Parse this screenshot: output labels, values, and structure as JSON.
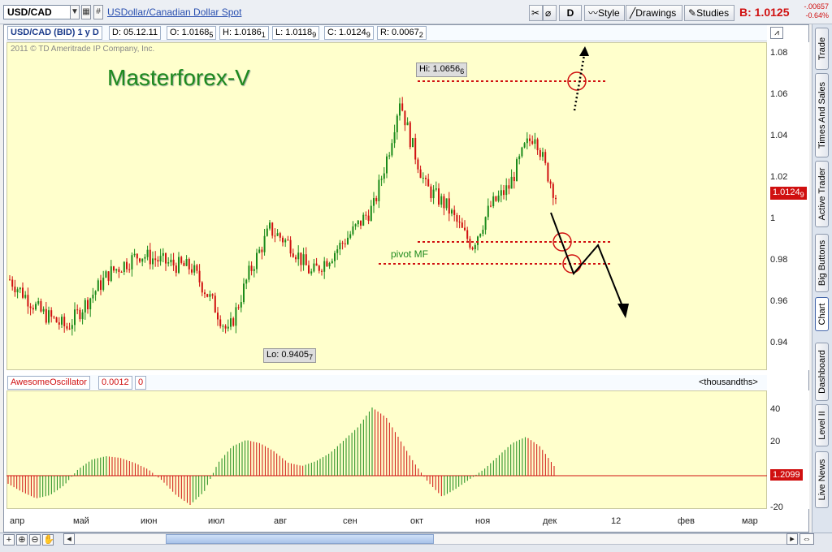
{
  "toolbar": {
    "symbol": "USD/CAD",
    "description": "USDollar/Canadian Dollar Spot",
    "period_button": "D",
    "style_label": "Style",
    "drawings_label": "Drawings",
    "studies_label": "Studies",
    "bid_label": "B: 1.0125",
    "change_abs": "-.00657",
    "change_pct": "-0.64%"
  },
  "chart_header": {
    "instrument": "USD/CAD (BID) 1 y D",
    "date": "D: 05.12.11",
    "open": "O: 1.0168",
    "open_sub": "5",
    "high": "H: 1.0186",
    "high_sub": "1",
    "low": "L: 1.0118",
    "low_sub": "9",
    "close": "C: 1.0124",
    "close_sub": "9",
    "range": "R: 0.0067",
    "range_sub": "2",
    "copyright": "2011 © TD Ameritrade IP Company, Inc."
  },
  "annotations": {
    "watermark": "Masterforex-V",
    "hi_label": "Hi: 1.0656",
    "hi_sub": "6",
    "lo_label": "Lo: 0.9405",
    "lo_sub": "7",
    "pivot_label": "pivot MF",
    "current_price": "1.0124",
    "current_price_sub": "9"
  },
  "oscillator": {
    "name": "AwesomeOscillator",
    "value": "0.0012",
    "value2": "0",
    "units": "<thousandths>",
    "current_value": "1.2099"
  },
  "price_axis": [
    "1.08",
    "1.06",
    "1.04",
    "1.02",
    "1",
    "0.98",
    "0.96",
    "0.94"
  ],
  "osc_axis": [
    "40",
    "20",
    "-20"
  ],
  "time_axis": [
    "апр",
    "май",
    "июн",
    "июл",
    "авг",
    "сен",
    "окт",
    "ноя",
    "дек",
    "12",
    "фев",
    "мар"
  ],
  "sidebar_tabs": [
    "Trade",
    "Times And Sales",
    "Active Trader",
    "Big Buttons",
    "Chart",
    "Dashboard",
    "Level II",
    "Live News"
  ],
  "colors": {
    "up": "#1a8a1a",
    "down": "#d01010",
    "background": "#ffffcc",
    "accent": "#2a50b0",
    "watermark": "#1e8a1e"
  },
  "icons": [
    "arrow-down-icon",
    "hash-icon",
    "scissors-icon",
    "magnet-icon",
    "chart-style-icon",
    "drawings-icon",
    "studies-icon",
    "crosshair-icon",
    "zoom-in-icon",
    "zoom-out-icon",
    "hand-icon",
    "scroll-left-icon",
    "scroll-right-icon"
  ],
  "chart_data": {
    "type": "candlestick",
    "title": "USD/CAD (BID) 1 y D",
    "ylim": [
      0.925,
      1.095
    ],
    "price_path": [
      [
        0,
        0.972
      ],
      [
        12,
        0.955
      ],
      [
        22,
        0.947
      ],
      [
        38,
        0.975
      ],
      [
        50,
        0.985
      ],
      [
        62,
        0.98
      ],
      [
        70,
        0.978
      ],
      [
        78,
        0.96
      ],
      [
        84,
        0.944
      ],
      [
        92,
        0.975
      ],
      [
        100,
        0.998
      ],
      [
        108,
        0.99
      ],
      [
        116,
        0.975
      ],
      [
        124,
        0.985
      ],
      [
        132,
        0.997
      ],
      [
        140,
        1.01
      ],
      [
        146,
        1.04
      ],
      [
        150,
        1.0656
      ],
      [
        154,
        1.045
      ],
      [
        160,
        1.02
      ],
      [
        168,
        1.01
      ],
      [
        175,
        0.995
      ],
      [
        178,
        0.99
      ],
      [
        185,
        1.01
      ],
      [
        192,
        1.02
      ],
      [
        198,
        1.04
      ],
      [
        202,
        1.048
      ],
      [
        206,
        1.03
      ],
      [
        210,
        1.015
      ]
    ],
    "series": [
      {
        "name": "AwesomeOscillator",
        "values": [
          -5,
          -10,
          -14,
          -12,
          -6,
          4,
          10,
          12,
          11,
          8,
          4,
          -3,
          -12,
          -18,
          -10,
          8,
          18,
          22,
          20,
          15,
          8,
          6,
          9,
          14,
          22,
          30,
          42,
          36,
          22,
          8,
          -4,
          -13,
          -8,
          -2,
          4,
          12,
          20,
          24,
          18,
          6
        ]
      }
    ]
  }
}
